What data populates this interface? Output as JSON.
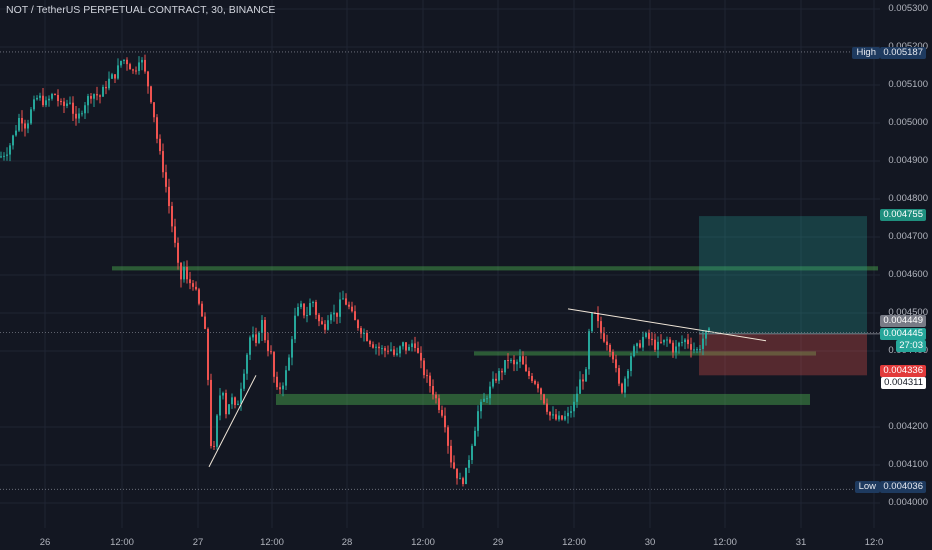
{
  "header": {
    "title": "NOT / TetherUS PERPETUAL CONTRACT, 30, BINANCE"
  },
  "colors": {
    "background": "#131722",
    "up": "#26a69a",
    "down": "#ef5350",
    "zone": "#4caf50",
    "target": "#26a69a",
    "stop": "#ef5350",
    "trendline": "#f0e6d8"
  },
  "labels": {
    "high_label": "High",
    "high_value": "0.005187",
    "low_label": "Low",
    "low_value": "0.004036",
    "target_price": "0.004755",
    "last_price": "0.004449",
    "entry_price": "0.004445",
    "countdown": "27:03",
    "stop_price": "0.004336",
    "prev_close": "0.004311"
  },
  "chart_data": {
    "type": "candlestick",
    "title": "NOT / TetherUS PERPETUAL CONTRACT, 30, BINANCE",
    "y_ticks": [
      "0.005300",
      "0.005200",
      "0.005100",
      "0.005000",
      "0.004900",
      "0.004800",
      "0.004700",
      "0.004600",
      "0.004500",
      "0.004400",
      "0.004200",
      "0.004100",
      "0.004000"
    ],
    "x_ticks": [
      "26",
      "12:00",
      "27",
      "12:00",
      "28",
      "12:00",
      "29",
      "12:00",
      "30",
      "12:00",
      "31",
      "12:0"
    ],
    "high": 0.005187,
    "low": 0.004036,
    "last_price": 0.004449,
    "path": [
      [
        0,
        0.00491
      ],
      [
        8,
        0.00493
      ],
      [
        14,
        0.00497
      ],
      [
        20,
        0.00502
      ],
      [
        26,
        0.00499
      ],
      [
        32,
        0.00504
      ],
      [
        38,
        0.00507
      ],
      [
        46,
        0.00505
      ],
      [
        54,
        0.00508
      ],
      [
        62,
        0.00504
      ],
      [
        70,
        0.00506
      ],
      [
        76,
        0.005
      ],
      [
        84,
        0.00505
      ],
      [
        92,
        0.00508
      ],
      [
        100,
        0.00507
      ],
      [
        108,
        0.00511
      ],
      [
        116,
        0.00513
      ],
      [
        122,
        0.00517
      ],
      [
        128,
        0.00516
      ],
      [
        134,
        0.00513
      ],
      [
        140,
        0.00518
      ],
      [
        146,
        0.00512
      ],
      [
        150,
        0.00508
      ],
      [
        154,
        0.00502
      ],
      [
        158,
        0.00494
      ],
      [
        163,
        0.00488
      ],
      [
        168,
        0.0048
      ],
      [
        172,
        0.00473
      ],
      [
        176,
        0.00466
      ],
      [
        180,
        0.00458
      ],
      [
        184,
        0.00462
      ],
      [
        188,
        0.00457
      ],
      [
        192,
        0.00459
      ],
      [
        196,
        0.00455
      ],
      [
        200,
        0.00451
      ],
      [
        204,
        0.00447
      ],
      [
        207,
        0.0044
      ],
      [
        210,
        0.00418
      ],
      [
        213,
        0.00411
      ],
      [
        218,
        0.00425
      ],
      [
        222,
        0.00432
      ],
      [
        226,
        0.00424
      ],
      [
        231,
        0.00428
      ],
      [
        236,
        0.00424
      ],
      [
        241,
        0.00431
      ],
      [
        246,
        0.00438
      ],
      [
        251,
        0.00445
      ],
      [
        256,
        0.00441
      ],
      [
        261,
        0.00449
      ],
      [
        266,
        0.00442
      ],
      [
        271,
        0.00439
      ],
      [
        276,
        0.00429
      ],
      [
        282,
        0.00431
      ],
      [
        288,
        0.00436
      ],
      [
        294,
        0.00448
      ],
      [
        300,
        0.00452
      ],
      [
        306,
        0.00449
      ],
      [
        312,
        0.00454
      ],
      [
        318,
        0.00448
      ],
      [
        324,
        0.00446
      ],
      [
        330,
        0.00451
      ],
      [
        336,
        0.00449
      ],
      [
        342,
        0.00454
      ],
      [
        348,
        0.00452
      ],
      [
        354,
        0.00448
      ],
      [
        360,
        0.00446
      ],
      [
        366,
        0.00444
      ],
      [
        372,
        0.00442
      ],
      [
        378,
        0.00441
      ],
      [
        384,
        0.0044
      ],
      [
        390,
        0.00441
      ],
      [
        396,
        0.00438
      ],
      [
        402,
        0.00442
      ],
      [
        408,
        0.0044
      ],
      [
        414,
        0.00443
      ],
      [
        420,
        0.00437
      ],
      [
        426,
        0.00433
      ],
      [
        432,
        0.0043
      ],
      [
        438,
        0.00426
      ],
      [
        444,
        0.00423
      ],
      [
        450,
        0.00412
      ],
      [
        456,
        0.00408
      ],
      [
        461,
        0.00405
      ],
      [
        466,
        0.00408
      ],
      [
        472,
        0.00416
      ],
      [
        478,
        0.00424
      ],
      [
        484,
        0.00427
      ],
      [
        490,
        0.0043
      ],
      [
        496,
        0.00433
      ],
      [
        502,
        0.00435
      ],
      [
        508,
        0.00438
      ],
      [
        514,
        0.00436
      ],
      [
        520,
        0.00438
      ],
      [
        526,
        0.00434
      ],
      [
        532,
        0.00433
      ],
      [
        538,
        0.00431
      ],
      [
        544,
        0.00427
      ],
      [
        550,
        0.00423
      ],
      [
        556,
        0.00422
      ],
      [
        562,
        0.00422
      ],
      [
        568,
        0.00423
      ],
      [
        574,
        0.00426
      ],
      [
        580,
        0.00432
      ],
      [
        586,
        0.00434
      ],
      [
        590,
        0.00448
      ],
      [
        594,
        0.0045
      ],
      [
        598,
        0.00447
      ],
      [
        602,
        0.00444
      ],
      [
        606,
        0.00443
      ],
      [
        610,
        0.00441
      ],
      [
        614,
        0.00438
      ],
      [
        618,
        0.00431
      ],
      [
        622,
        0.0043
      ],
      [
        626,
        0.00434
      ],
      [
        632,
        0.0044
      ],
      [
        638,
        0.00441
      ],
      [
        644,
        0.00444
      ],
      [
        650,
        0.00443
      ],
      [
        656,
        0.00441
      ],
      [
        662,
        0.00442
      ],
      [
        668,
        0.00443
      ],
      [
        674,
        0.0044
      ],
      [
        680,
        0.00442
      ],
      [
        686,
        0.00443
      ],
      [
        692,
        0.00441
      ],
      [
        698,
        0.0044
      ],
      [
        704,
        0.00444
      ],
      [
        710,
        0.004449
      ]
    ],
    "zones": [
      {
        "x0": 112,
        "x1": 878,
        "y_top": 0.004623,
        "y_bot": 0.004612
      },
      {
        "x0": 474,
        "x1": 816,
        "y_top": 0.004399,
        "y_bot": 0.004388
      },
      {
        "x0": 276,
        "x1": 810,
        "y_top": 0.004287,
        "y_bot": 0.004258
      }
    ],
    "position": {
      "x0": 699,
      "x1": 867,
      "target": 0.004755,
      "entry": 0.004445,
      "stop": 0.004336
    },
    "trendlines": [
      {
        "x1": 568,
        "y1": 0.004511,
        "x2": 766,
        "y2": 0.004427
      },
      {
        "x1": 209,
        "y1": 0.004095,
        "x2": 256,
        "y2": 0.004336
      }
    ]
  }
}
